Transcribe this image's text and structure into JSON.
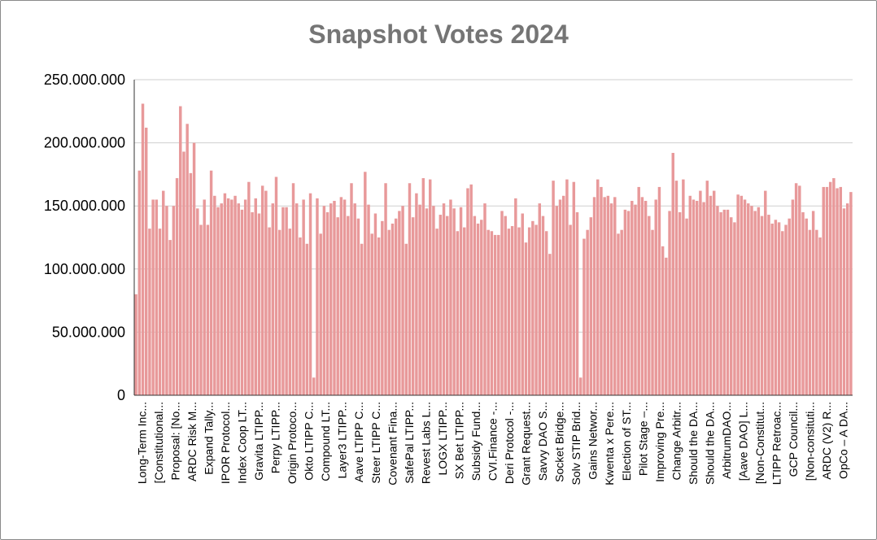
{
  "chart_data": {
    "type": "bar",
    "title": "Snapshot Votes 2024",
    "xlabel": "",
    "ylabel": "",
    "ylim": [
      0,
      250000000
    ],
    "yticks": [
      "0",
      "50.000.000",
      "100.000.000",
      "150.000.000",
      "200.000.000",
      "250.000.000"
    ],
    "ytick_values": [
      0,
      50000000,
      100000000,
      150000000,
      200000000,
      250000000
    ],
    "grid": true,
    "legend": "none",
    "colors": {
      "bar": "#e8999a",
      "grid": "#cfcfcf",
      "axis": "#333333",
      "title": "#757575"
    },
    "tick_labels": [
      "Long-Term Inc...",
      "[Constitutional...",
      "Proposal: [No...",
      "ARDC Risk M...",
      "Expand Tally...",
      "IPOR Protocol...",
      "Index Coop LT...",
      "Gravita LTIPP...",
      "Perpy LTIPP...",
      "Origin Protoco...",
      "Okto LTIPP C...",
      "Compound LT...",
      "Layer3 LTIPP...",
      "Aave LTIPP C...",
      "Steer LTIPP C...",
      "Covenant Fina...",
      "SafePal LTIPP...",
      "Revest Labs L...",
      "LOGX LTIPP...",
      "SX Bet LTIPP...",
      "Subsidy Fund...",
      "CVI.Finance -...",
      "Deri Protocol -...",
      "Grant Request...",
      "Savvy DAO S...",
      "Socket Bridge...",
      "Solv STIP Brid...",
      "Gains Networ...",
      "Kwenta x Pere...",
      "Election of ST...",
      "Pilot Stage –...",
      "Improving Pre...",
      "Change Arbitr...",
      "Should the DA...",
      "Should the DA...",
      "ArbitrumDAO...",
      "[Aave DAO] L...",
      "[Non-Constitut...",
      "LTIPP Retroac...",
      "GCP Council...",
      "[Non-consituti...",
      "ARDC (V2) R...",
      "OpCo – A DA..."
    ],
    "values": [
      80000000,
      178000000,
      231000000,
      212000000,
      132000000,
      155000000,
      155000000,
      132000000,
      162000000,
      150000000,
      123000000,
      150000000,
      172000000,
      229000000,
      193000000,
      215000000,
      176000000,
      200000000,
      148000000,
      135000000,
      155000000,
      135000000,
      178000000,
      158000000,
      149000000,
      152000000,
      160000000,
      156000000,
      155000000,
      158000000,
      152000000,
      147000000,
      155000000,
      169000000,
      145000000,
      156000000,
      144000000,
      166000000,
      162000000,
      133000000,
      152000000,
      173000000,
      131000000,
      149000000,
      149000000,
      132000000,
      168000000,
      152000000,
      125000000,
      155000000,
      120000000,
      160000000,
      14000000,
      156000000,
      128000000,
      150000000,
      145000000,
      152000000,
      154000000,
      141000000,
      157000000,
      155000000,
      142000000,
      168000000,
      152000000,
      140000000,
      120000000,
      177000000,
      151000000,
      128000000,
      144000000,
      125000000,
      138000000,
      168000000,
      131000000,
      136000000,
      140000000,
      146000000,
      150000000,
      120000000,
      168000000,
      141000000,
      160000000,
      151000000,
      172000000,
      148000000,
      171000000,
      150000000,
      132000000,
      143000000,
      152000000,
      142000000,
      155000000,
      148000000,
      130000000,
      149000000,
      133000000,
      164000000,
      167000000,
      142000000,
      136000000,
      139000000,
      152000000,
      131000000,
      130000000,
      127000000,
      127000000,
      146000000,
      142000000,
      132000000,
      134000000,
      156000000,
      133000000,
      144000000,
      121000000,
      133000000,
      138000000,
      135000000,
      152000000,
      142000000,
      130000000,
      112000000,
      170000000,
      150000000,
      155000000,
      158000000,
      171000000,
      135000000,
      169000000,
      145000000,
      14000000,
      124000000,
      131000000,
      141000000,
      157000000,
      171000000,
      165000000,
      157000000,
      158000000,
      152000000,
      157000000,
      128000000,
      131000000,
      147000000,
      146000000,
      154000000,
      151000000,
      165000000,
      157000000,
      154000000,
      142000000,
      131000000,
      155000000,
      165000000,
      118000000,
      109000000,
      146000000,
      192000000,
      170000000,
      145000000,
      171000000,
      140000000,
      158000000,
      155000000,
      154000000,
      162000000,
      153000000,
      170000000,
      158000000,
      162000000,
      150000000,
      145000000,
      147000000,
      147000000,
      141000000,
      137000000,
      159000000,
      158000000,
      155000000,
      152000000,
      150000000,
      146000000,
      149000000,
      142000000,
      162000000,
      143000000,
      136000000,
      139000000,
      137000000,
      130000000,
      135000000,
      140000000,
      155000000,
      168000000,
      166000000,
      145000000,
      140000000,
      131000000,
      146000000,
      131000000,
      125000000,
      165000000,
      165000000,
      169000000,
      172000000,
      164000000,
      165000000,
      148000000,
      152000000,
      161000000
    ]
  }
}
